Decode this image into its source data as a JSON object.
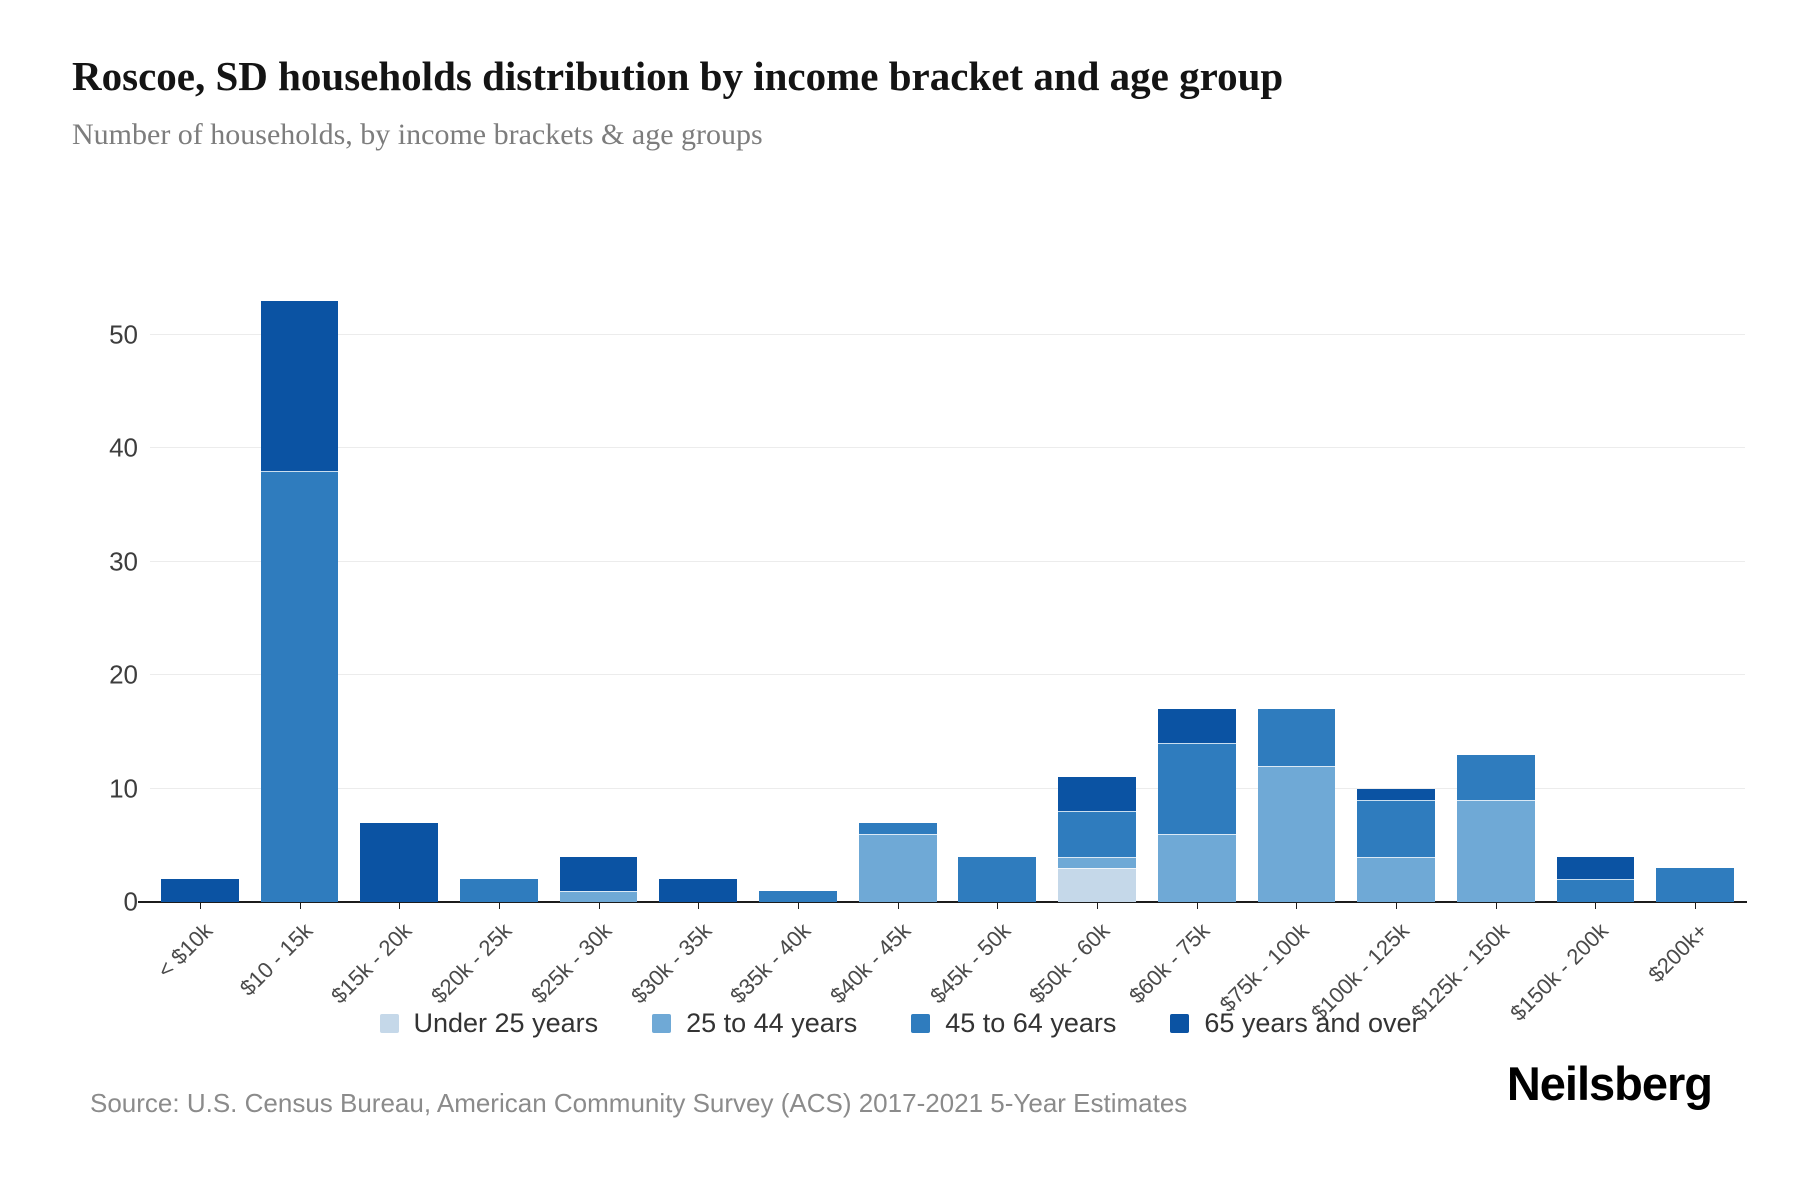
{
  "title": "Roscoe, SD households distribution by income bracket and age group",
  "subtitle": "Number of households, by income brackets & age groups",
  "source": "Source: U.S. Census Bureau, American Community Survey (ACS) 2017-2021 5-Year Estimates",
  "logo": "Neilsberg",
  "axis": {
    "yticks": [
      0,
      10,
      20,
      30,
      40,
      50
    ]
  },
  "chart_data": {
    "type": "bar",
    "stacked": true,
    "title": "Roscoe, SD households distribution by income bracket and age group",
    "xlabel": "",
    "ylabel": "Number of households",
    "ylim": [
      0,
      56.6
    ],
    "grid": true,
    "legend_position": "bottom",
    "categories": [
      "< $10k",
      "$10 - 15k",
      "$15k - 20k",
      "$20k - 25k",
      "$25k - 30k",
      "$30k - 35k",
      "$35k - 40k",
      "$40k - 45k",
      "$45k - 50k",
      "$50k - 60k",
      "$60k - 75k",
      "$75k - 100k",
      "$100k - 125k",
      "$125k - 150k",
      "$150k - 200k",
      "$200k+"
    ],
    "series": [
      {
        "name": "Under 25 years",
        "color": "#c5d8e9",
        "values": [
          0,
          0,
          0,
          0,
          0,
          0,
          0,
          0,
          0,
          3,
          0,
          0,
          0,
          0,
          0,
          0
        ]
      },
      {
        "name": "25 to 44 years",
        "color": "#6fa9d6",
        "values": [
          0,
          0,
          0,
          0,
          1,
          0,
          0,
          6,
          0,
          1,
          6,
          12,
          4,
          9,
          0,
          0
        ]
      },
      {
        "name": "45 to 64 years",
        "color": "#2f7cbe",
        "values": [
          0,
          38,
          0,
          2,
          0,
          0,
          1,
          1,
          4,
          4,
          8,
          5,
          5,
          4,
          2,
          3
        ]
      },
      {
        "name": "65 years and over",
        "color": "#0b53a3",
        "values": [
          2,
          15,
          7,
          0,
          3,
          2,
          0,
          0,
          0,
          3,
          3,
          0,
          1,
          0,
          2,
          0
        ]
      }
    ],
    "totals": [
      2,
      53,
      7,
      2,
      4,
      2,
      1,
      7,
      4,
      11,
      17,
      17,
      10,
      13,
      4,
      3
    ]
  }
}
